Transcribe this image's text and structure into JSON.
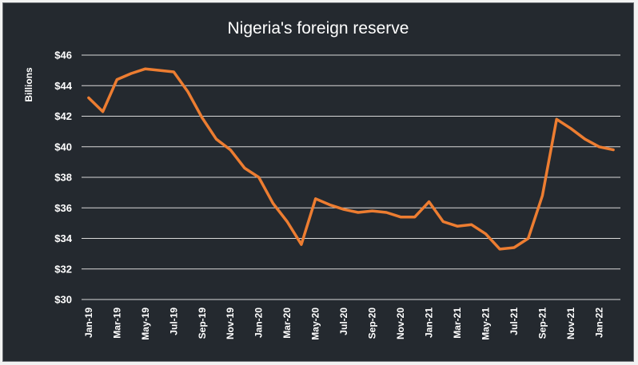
{
  "chart_data": {
    "type": "line",
    "title": "Nigeria's foreign reserve",
    "ylabel": "Billions",
    "xlabel": "",
    "ylim": [
      30,
      46
    ],
    "y_ticks": [
      "$30",
      "$32",
      "$34",
      "$36",
      "$38",
      "$40",
      "$42",
      "$44",
      "$46"
    ],
    "y_tick_values": [
      30,
      32,
      34,
      36,
      38,
      40,
      42,
      44,
      46
    ],
    "x_tick_labels": [
      "Jan-19",
      "Mar-19",
      "May-19",
      "Jul-19",
      "Sep-19",
      "Nov-19",
      "Jan-20",
      "Mar-20",
      "May-20",
      "Jul-20",
      "Sep-20",
      "Nov-20",
      "Jan-21",
      "Mar-21",
      "May-21",
      "Jul-21",
      "Sep-21",
      "Nov-21",
      "Jan-22"
    ],
    "x": [
      "Jan-19",
      "Feb-19",
      "Mar-19",
      "Apr-19",
      "May-19",
      "Jun-19",
      "Jul-19",
      "Aug-19",
      "Sep-19",
      "Oct-19",
      "Nov-19",
      "Dec-19",
      "Jan-20",
      "Feb-20",
      "Mar-20",
      "Apr-20",
      "May-20",
      "Jun-20",
      "Jul-20",
      "Aug-20",
      "Sep-20",
      "Oct-20",
      "Nov-20",
      "Dec-20",
      "Jan-21",
      "Feb-21",
      "Mar-21",
      "Apr-21",
      "May-21",
      "Jun-21",
      "Jul-21",
      "Aug-21",
      "Sep-21",
      "Oct-21",
      "Nov-21",
      "Dec-21",
      "Jan-22",
      "Feb-22"
    ],
    "values": [
      43.2,
      42.3,
      44.4,
      44.8,
      45.1,
      45.0,
      44.9,
      43.6,
      41.9,
      40.5,
      39.8,
      38.6,
      38.0,
      36.3,
      35.1,
      33.6,
      36.6,
      36.2,
      35.9,
      35.7,
      35.8,
      35.7,
      35.4,
      35.4,
      36.4,
      35.1,
      34.8,
      34.9,
      34.3,
      33.3,
      33.4,
      34.0,
      36.8,
      41.8,
      41.2,
      40.5,
      40.0,
      39.8
    ],
    "grid": true,
    "line_color": "#ed7d31",
    "background": "#24292f",
    "gridline_color": "#d9d9d9",
    "text_color": "#ffffff"
  }
}
